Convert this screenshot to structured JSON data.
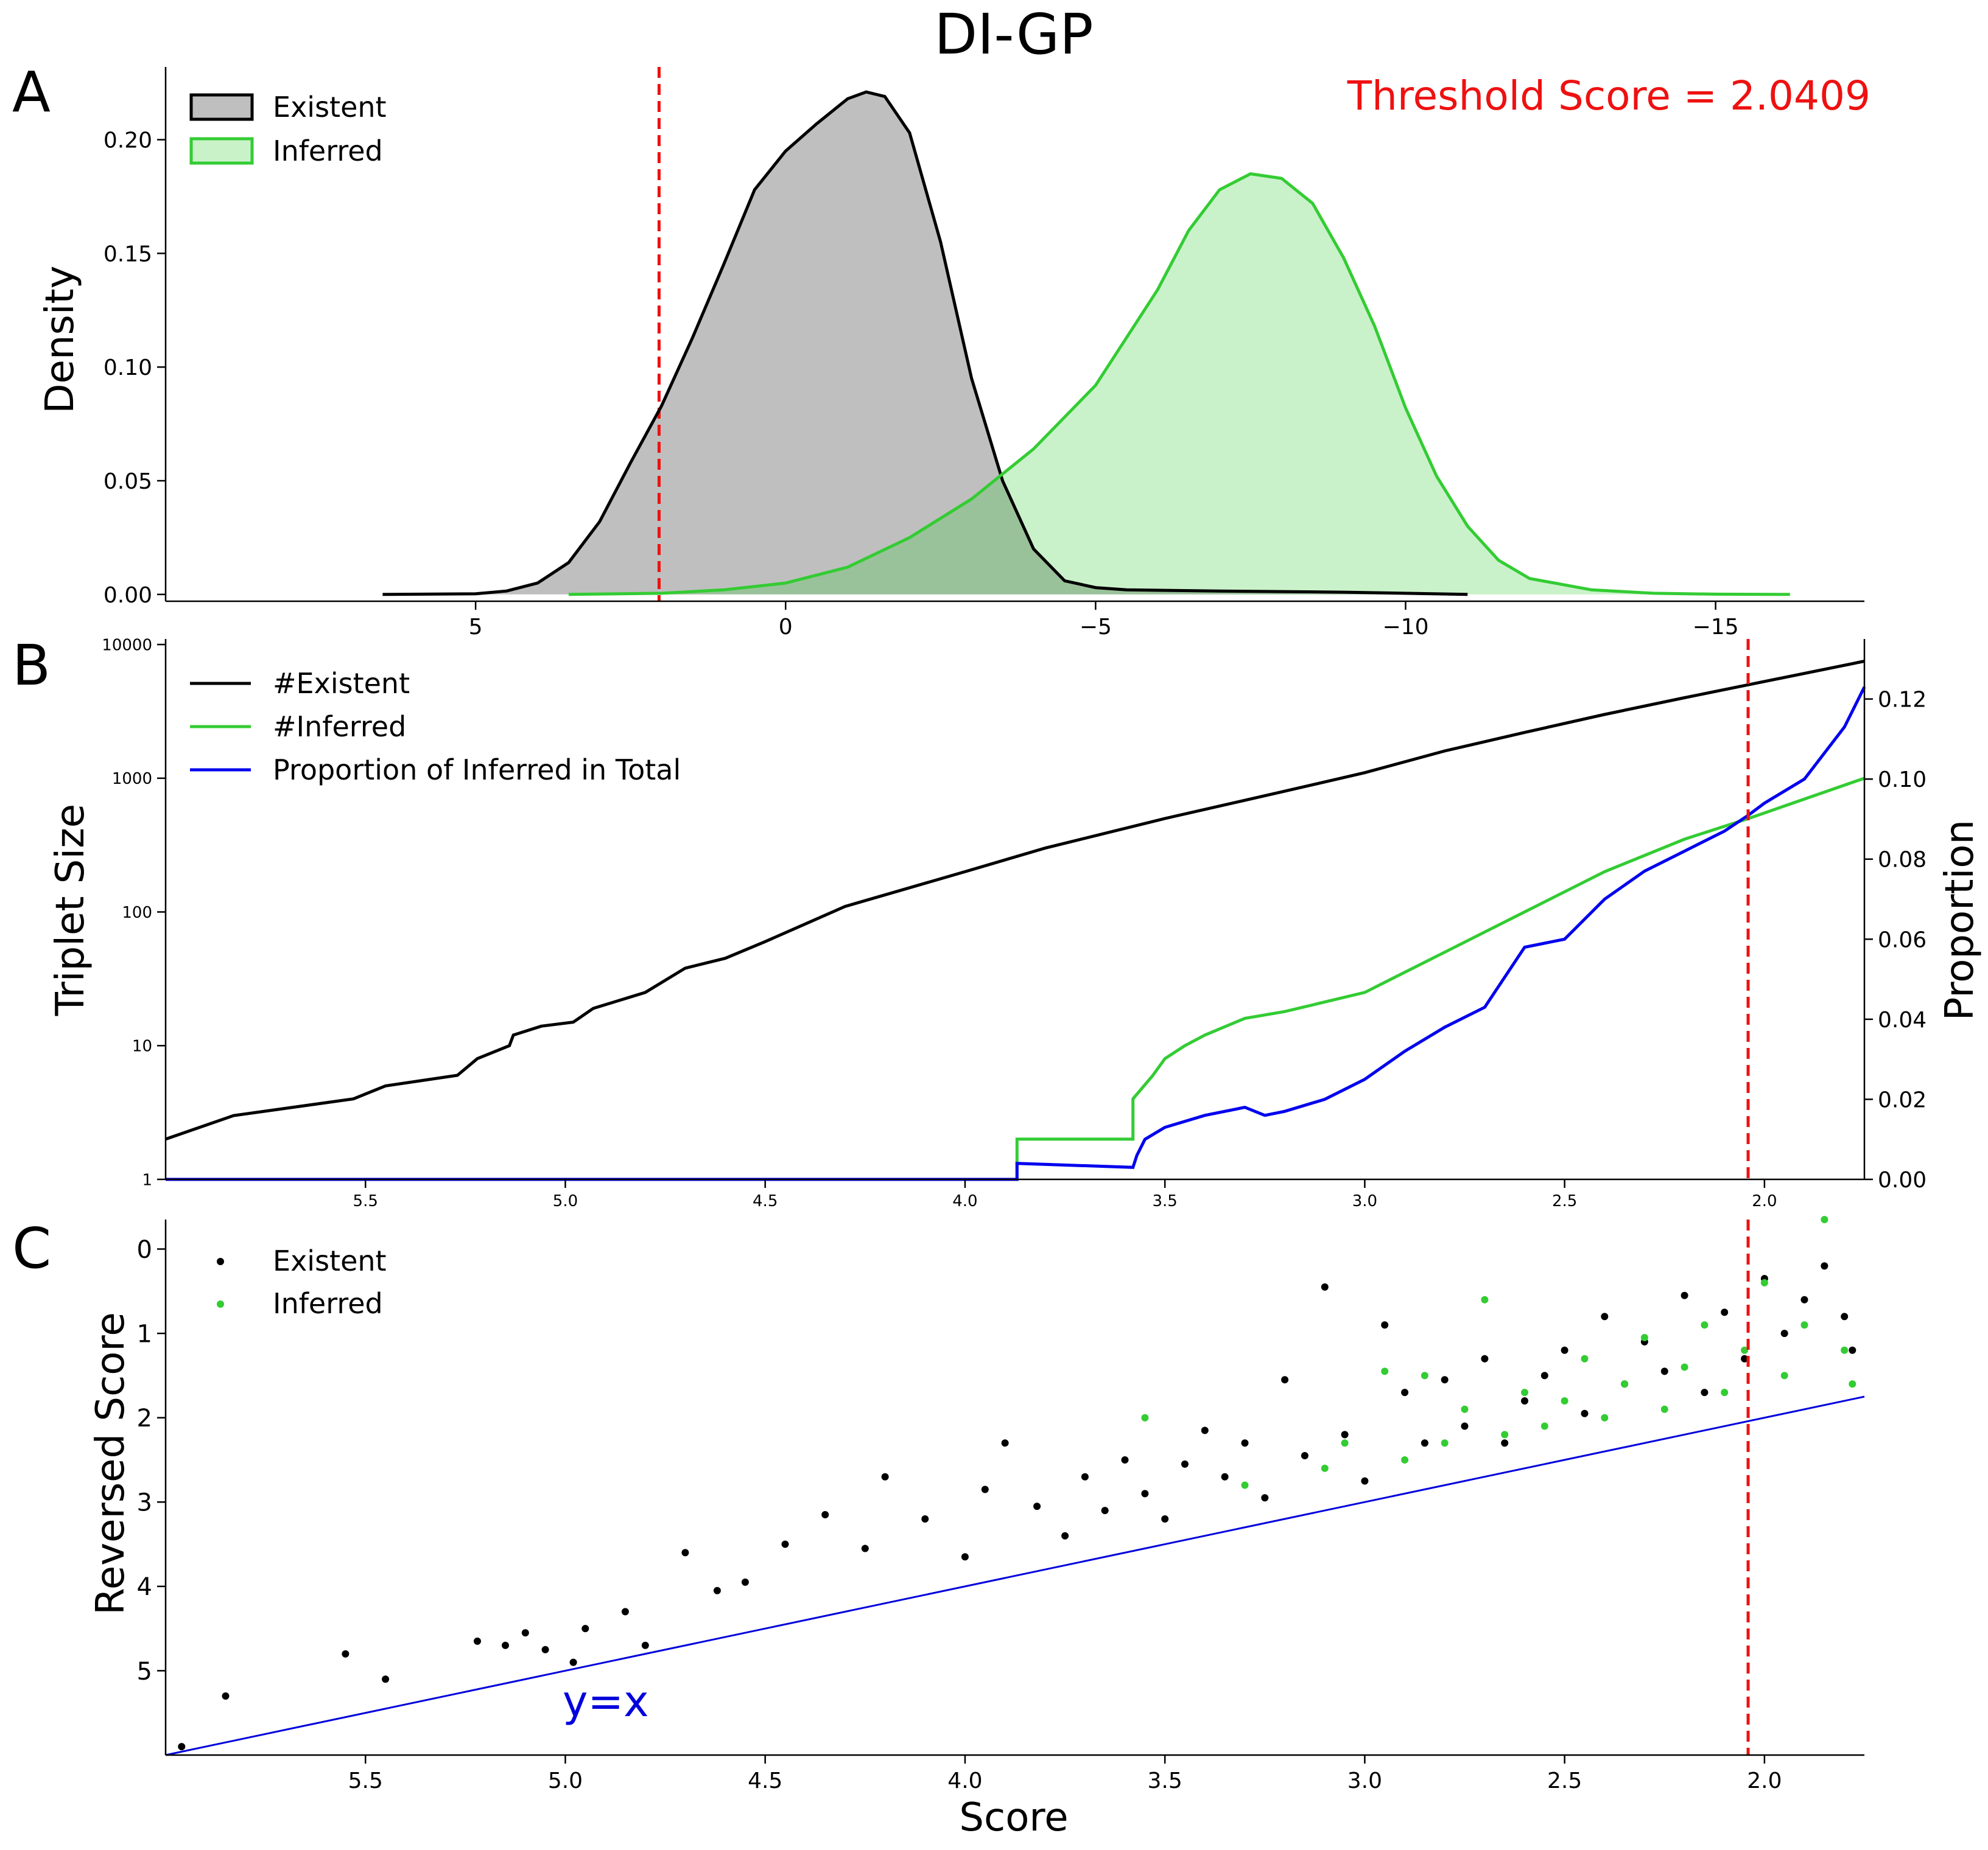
{
  "figure": {
    "title": "DI-GP",
    "colors": {
      "existent": "#000000",
      "inferred": "#33cc33",
      "inferred_fill": "#c9f2c9",
      "existent_fill": "#bfbfbf",
      "proportion": "#0000ee",
      "threshold": "#ee1111",
      "identity": "#0000dd"
    }
  },
  "chart_data": [
    {
      "panel_label": "A",
      "type": "area",
      "xlabel": "",
      "ylabel": "Density",
      "xlim": [
        10,
        -17.4
      ],
      "ylim": [
        -0.003,
        0.232
      ],
      "x_inverted": true,
      "xticks": [
        5,
        0,
        -5,
        -10,
        -15
      ],
      "xtick_labels": [
        "5",
        "0",
        "−5",
        "−10",
        "−15"
      ],
      "yticks": [
        0,
        0.05,
        0.1,
        0.15,
        0.2
      ],
      "ytick_labels": [
        "0.00",
        "0.05",
        "0.10",
        "0.15",
        "0.20"
      ],
      "legend": {
        "placement": "top-left",
        "entries": [
          "Existent",
          "Inferred"
        ]
      },
      "annotation": "Threshold Score = 2.0409",
      "threshold_x": 2.0409,
      "series": [
        {
          "name": "Existent",
          "x": [
            6.5,
            5,
            4.5,
            4,
            3.5,
            3,
            2.5,
            2,
            1.5,
            1,
            0.5,
            0,
            -0.5,
            -1,
            -1.3,
            -1.6,
            -2,
            -2.5,
            -3,
            -3.5,
            -4,
            -4.5,
            -5,
            -5.5,
            -7,
            -9,
            -11
          ],
          "y": [
            0,
            0.0003,
            0.0015,
            0.005,
            0.014,
            0.032,
            0.058,
            0.083,
            0.113,
            0.145,
            0.178,
            0.195,
            0.207,
            0.218,
            0.221,
            0.219,
            0.203,
            0.155,
            0.095,
            0.05,
            0.02,
            0.006,
            0.003,
            0.002,
            0.0015,
            0.001,
            0
          ]
        },
        {
          "name": "Inferred",
          "x": [
            3.5,
            2,
            1,
            0,
            -1,
            -2,
            -3,
            -4,
            -5,
            -6,
            -6.5,
            -7,
            -7.5,
            -8,
            -8.5,
            -9,
            -9.5,
            -10,
            -10.5,
            -11,
            -11.5,
            -12,
            -13,
            -14,
            -15,
            -16.2
          ],
          "y": [
            0,
            0.0005,
            0.002,
            0.005,
            0.012,
            0.025,
            0.042,
            0.064,
            0.092,
            0.134,
            0.16,
            0.178,
            0.185,
            0.183,
            0.172,
            0.148,
            0.118,
            0.082,
            0.052,
            0.03,
            0.015,
            0.007,
            0.002,
            0.0005,
            0.0001,
            0
          ]
        }
      ]
    },
    {
      "panel_label": "B",
      "type": "line",
      "xlabel": "",
      "ylabel": "Triplet Size",
      "y2label": "Proportion",
      "xlim": [
        6,
        1.75
      ],
      "x_inverted": true,
      "y_scale": "log",
      "ylim": [
        1,
        11000
      ],
      "y2lim": [
        0,
        0.135
      ],
      "xticks": [
        5.5,
        5.0,
        4.5,
        4.0,
        3.5,
        3.0,
        2.5,
        2.0
      ],
      "xtick_labels": [
        "5.5",
        "5.0",
        "4.5",
        "4.0",
        "3.5",
        "3.0",
        "2.5",
        "2.0"
      ],
      "yticks": [
        1,
        10,
        100,
        1000,
        10000
      ],
      "ytick_labels": [
        "1",
        "10",
        "100",
        "1000",
        "10000"
      ],
      "y2ticks": [
        0,
        0.02,
        0.04,
        0.06,
        0.08,
        0.1,
        0.12
      ],
      "y2tick_labels": [
        "0.00",
        "0.02",
        "0.04",
        "0.06",
        "0.08",
        "0.10",
        "0.12"
      ],
      "legend": {
        "placement": "top-left",
        "entries": [
          "#Existent",
          "#Inferred",
          "Proportion of Inferred in Total"
        ]
      },
      "threshold_x": 2.0409,
      "series": [
        {
          "name": "#Existent",
          "axis": "left",
          "x": [
            6.0,
            5.83,
            5.53,
            5.45,
            5.27,
            5.22,
            5.14,
            5.13,
            5.06,
            4.98,
            4.93,
            4.8,
            4.7,
            4.6,
            4.5,
            4.3,
            4.0,
            3.8,
            3.5,
            3.2,
            3.0,
            2.8,
            2.6,
            2.4,
            2.2,
            2.04,
            1.75
          ],
          "y": [
            2,
            3,
            4,
            5,
            6,
            8,
            10,
            12,
            14,
            15,
            19,
            25,
            38,
            45,
            60,
            110,
            200,
            300,
            500,
            800,
            1100,
            1600,
            2200,
            3000,
            4000,
            5000,
            7500
          ]
        },
        {
          "name": "#Inferred",
          "axis": "left",
          "x": [
            6.0,
            3.87,
            3.87,
            3.58,
            3.58,
            3.53,
            3.5,
            3.45,
            3.4,
            3.3,
            3.2,
            3.0,
            2.8,
            2.6,
            2.4,
            2.2,
            2.04,
            1.75
          ],
          "y": [
            1,
            1,
            2,
            2,
            4,
            6,
            8,
            10,
            12,
            16,
            18,
            25,
            50,
            100,
            200,
            350,
            500,
            1000
          ]
        },
        {
          "name": "Proportion of Inferred in Total",
          "axis": "right",
          "x": [
            6.0,
            3.87,
            3.87,
            3.58,
            3.57,
            3.55,
            3.5,
            3.4,
            3.3,
            3.25,
            3.2,
            3.1,
            3.0,
            2.9,
            2.8,
            2.7,
            2.6,
            2.5,
            2.4,
            2.3,
            2.2,
            2.1,
            2.04,
            2.0,
            1.9,
            1.8,
            1.75
          ],
          "y": [
            0,
            0,
            0.004,
            0.003,
            0.006,
            0.01,
            0.013,
            0.016,
            0.018,
            0.016,
            0.017,
            0.02,
            0.025,
            0.032,
            0.038,
            0.043,
            0.058,
            0.06,
            0.07,
            0.077,
            0.082,
            0.087,
            0.091,
            0.094,
            0.1,
            0.113,
            0.123
          ]
        }
      ]
    },
    {
      "panel_label": "C",
      "type": "scatter",
      "xlabel": "Score",
      "ylabel": "Reversed Score",
      "xlim": [
        6,
        1.75
      ],
      "ylim": [
        6,
        -0.35
      ],
      "x_inverted": true,
      "y_inverted": true,
      "xticks": [
        5.5,
        5.0,
        4.5,
        4.0,
        3.5,
        3.0,
        2.5,
        2.0
      ],
      "xtick_labels": [
        "5.5",
        "5.0",
        "4.5",
        "4.0",
        "3.5",
        "3.0",
        "2.5",
        "2.0"
      ],
      "yticks": [
        0,
        1,
        2,
        3,
        4,
        5
      ],
      "ytick_labels": [
        "0",
        "1",
        "2",
        "3",
        "4",
        "5"
      ],
      "legend": {
        "placement": "top-left",
        "entries": [
          "Existent",
          "Inferred"
        ]
      },
      "annotation": "y=x",
      "threshold_x": 2.0409,
      "series": [
        {
          "name": "Existent",
          "x": [
            5.96,
            5.85,
            5.55,
            5.45,
            5.22,
            5.15,
            5.1,
            5.05,
            4.98,
            4.95,
            4.85,
            4.8,
            4.7,
            4.62,
            4.55,
            4.45,
            4.35,
            4.25,
            4.2,
            4.1,
            4.0,
            3.95,
            3.9,
            3.82,
            3.75,
            3.7,
            3.65,
            3.6,
            3.55,
            3.5,
            3.45,
            3.4,
            3.35,
            3.3,
            3.25,
            3.2,
            3.15,
            3.1,
            3.05,
            3.0,
            2.95,
            2.9,
            2.85,
            2.8,
            2.75,
            2.7,
            2.65,
            2.6,
            2.55,
            2.5,
            2.45,
            2.4,
            2.35,
            2.3,
            2.25,
            2.2,
            2.15,
            2.1,
            2.05,
            2.0,
            1.95,
            1.9,
            1.85,
            1.8,
            1.78
          ],
          "y": [
            5.9,
            5.3,
            4.8,
            5.1,
            4.65,
            4.7,
            4.55,
            4.75,
            4.9,
            4.5,
            4.3,
            4.7,
            3.6,
            4.05,
            3.95,
            3.5,
            3.15,
            3.55,
            2.7,
            3.2,
            3.65,
            2.85,
            2.3,
            3.05,
            3.4,
            2.7,
            3.1,
            2.5,
            2.9,
            3.2,
            2.55,
            2.15,
            2.7,
            2.3,
            2.95,
            1.55,
            2.45,
            0.45,
            2.2,
            2.75,
            0.9,
            1.7,
            2.3,
            1.55,
            2.1,
            1.3,
            2.3,
            1.8,
            1.5,
            1.2,
            1.95,
            0.8,
            1.6,
            1.1,
            1.45,
            0.55,
            1.7,
            0.75,
            1.3,
            0.35,
            1.0,
            0.6,
            0.2,
            0.8,
            1.2
          ]
        },
        {
          "name": "Inferred",
          "x": [
            3.55,
            3.3,
            3.1,
            3.05,
            2.95,
            2.9,
            2.85,
            2.8,
            2.75,
            2.7,
            2.65,
            2.6,
            2.55,
            2.5,
            2.45,
            2.4,
            2.35,
            2.3,
            2.25,
            2.2,
            2.15,
            2.1,
            2.05,
            2.0,
            1.95,
            1.9,
            1.85,
            1.8,
            1.78
          ],
          "y": [
            2.0,
            2.8,
            2.6,
            2.3,
            1.45,
            2.5,
            1.5,
            2.3,
            1.9,
            0.6,
            2.2,
            1.7,
            2.1,
            1.8,
            1.3,
            2.0,
            1.6,
            1.05,
            1.9,
            1.4,
            0.9,
            1.7,
            1.2,
            0.4,
            1.5,
            0.9,
            -0.35,
            1.2,
            1.6
          ]
        }
      ]
    }
  ]
}
